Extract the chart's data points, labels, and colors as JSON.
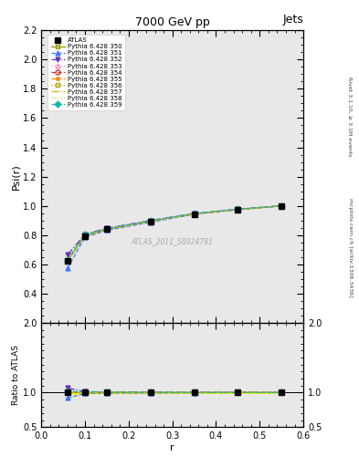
{
  "title": "7000 GeV pp",
  "title_right": "Jets",
  "ylabel_main": "Psi(r)",
  "ylabel_ratio": "Ratio to ATLAS",
  "xlabel": "r",
  "watermark": "ATLAS_2011_S8924791",
  "right_label_top": "Rivet 3.1.10, ≥ 3.1M events",
  "right_label_bottom": "mcplots.cern.ch [arXiv:1306.3436]",
  "x_data": [
    0.06,
    0.1,
    0.15,
    0.25,
    0.35,
    0.45,
    0.55
  ],
  "atlas_y": [
    0.625,
    0.795,
    0.84,
    0.895,
    0.945,
    0.975,
    1.0
  ],
  "atlas_yerr": [
    0.01,
    0.01,
    0.01,
    0.005,
    0.005,
    0.005,
    0.005
  ],
  "series": [
    {
      "label": "Pythia 6.428 350",
      "color": "#999900",
      "linestyle": "-",
      "marker": "s",
      "filled": false,
      "y": [
        0.625,
        0.795,
        0.84,
        0.895,
        0.945,
        0.975,
        1.0
      ]
    },
    {
      "label": "Pythia 6.428 351",
      "color": "#4477ff",
      "linestyle": "--",
      "marker": "^",
      "filled": true,
      "y": [
        0.575,
        0.785,
        0.833,
        0.888,
        0.942,
        0.974,
        1.0
      ]
    },
    {
      "label": "Pythia 6.428 352",
      "color": "#6633bb",
      "linestyle": "-.",
      "marker": "v",
      "filled": true,
      "y": [
        0.665,
        0.805,
        0.847,
        0.9,
        0.948,
        0.977,
        1.0
      ]
    },
    {
      "label": "Pythia 6.428 353",
      "color": "#ff88bb",
      "linestyle": ":",
      "marker": "^",
      "filled": false,
      "y": [
        0.63,
        0.798,
        0.841,
        0.896,
        0.945,
        0.975,
        1.0
      ]
    },
    {
      "label": "Pythia 6.428 354",
      "color": "#cc3333",
      "linestyle": "--",
      "marker": "o",
      "filled": false,
      "y": [
        0.628,
        0.796,
        0.841,
        0.895,
        0.945,
        0.975,
        1.0
      ]
    },
    {
      "label": "Pythia 6.428 355",
      "color": "#ff8800",
      "linestyle": "-.",
      "marker": "*",
      "filled": true,
      "y": [
        0.63,
        0.798,
        0.842,
        0.896,
        0.945,
        0.975,
        1.0
      ]
    },
    {
      "label": "Pythia 6.428 356",
      "color": "#aaaa00",
      "linestyle": ":",
      "marker": "s",
      "filled": false,
      "y": [
        0.625,
        0.795,
        0.84,
        0.895,
        0.945,
        0.975,
        1.0
      ]
    },
    {
      "label": "Pythia 6.428 357",
      "color": "#ccbb00",
      "linestyle": "-.",
      "marker": null,
      "filled": false,
      "y": [
        0.627,
        0.796,
        0.84,
        0.894,
        0.944,
        0.974,
        1.0
      ]
    },
    {
      "label": "Pythia 6.428 358",
      "color": "#bbdd44",
      "linestyle": ":",
      "marker": null,
      "filled": false,
      "y": [
        0.628,
        0.797,
        0.841,
        0.895,
        0.945,
        0.975,
        1.0
      ]
    },
    {
      "label": "Pythia 6.428 359",
      "color": "#11bbaa",
      "linestyle": "--",
      "marker": "D",
      "filled": true,
      "y": [
        0.633,
        0.803,
        0.844,
        0.899,
        0.947,
        0.977,
        1.0
      ]
    }
  ],
  "xlim": [
    0.0,
    0.6
  ],
  "ylim_main": [
    0.2,
    2.2
  ],
  "ylim_ratio": [
    0.5,
    2.0
  ],
  "yticks_main": [
    0.4,
    0.6,
    0.8,
    1.0,
    1.2,
    1.4,
    1.6,
    1.8,
    2.0,
    2.2
  ],
  "yticks_ratio": [
    0.5,
    1.0,
    2.0
  ],
  "bg_color": "#e8e8e8"
}
